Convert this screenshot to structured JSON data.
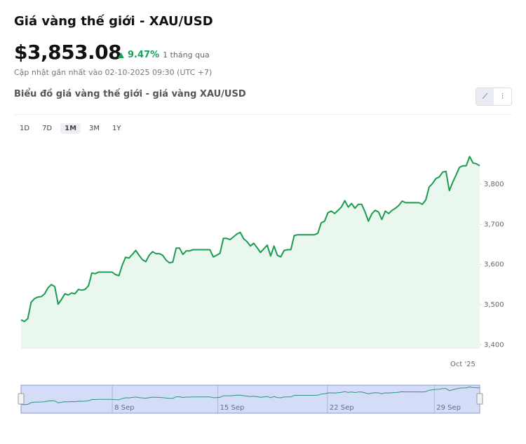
{
  "header": {
    "title": "Giá vàng thế giới - XAU/USD",
    "price": "$3,853.08",
    "change": "9.47%",
    "period": "1 tháng qua",
    "updated": "Cập nhật gần nhất vào 02-10-2025 09:30 (UTC +7)",
    "chart_heading": "Biểu đồ giá vàng thế giới - giá vàng XAU/USD",
    "ranges": [
      "1D",
      "7D",
      "1M",
      "3M",
      "1Y"
    ],
    "active_range": "1M"
  },
  "chart_data": {
    "type": "line",
    "color": "#1a9c50",
    "fill": "#eaf7ef",
    "categories": [
      null,
      null,
      null,
      null,
      null,
      null,
      null,
      null,
      null,
      null,
      null,
      null,
      null,
      null,
      null,
      null,
      null,
      null,
      null,
      null,
      null,
      null,
      null,
      null,
      null,
      null,
      null,
      null,
      null,
      null,
      null,
      null,
      null,
      null,
      null,
      null,
      null,
      null,
      null,
      null,
      null,
      null,
      null,
      null,
      null,
      null,
      null,
      null,
      null,
      null,
      null,
      null,
      null,
      null,
      null,
      null,
      null,
      null,
      null,
      null,
      null,
      null,
      null,
      null,
      null,
      null,
      null,
      null,
      null,
      null,
      null,
      null,
      null,
      null,
      null,
      null,
      null,
      null,
      null,
      null,
      null,
      null,
      null,
      null,
      null,
      null,
      null,
      null,
      null,
      null,
      null,
      null,
      null,
      null,
      null,
      null,
      null,
      null,
      null,
      null,
      null,
      null,
      null,
      null,
      null,
      null,
      null,
      null,
      null,
      null,
      null,
      null,
      null,
      null,
      null,
      null,
      null,
      null,
      null,
      null,
      null,
      null,
      null,
      null,
      null,
      null,
      null,
      null,
      null,
      null,
      null,
      "Oct '25",
      null,
      null,
      null,
      null,
      null
    ],
    "values": [
      3462,
      3458,
      3465,
      3506,
      3515,
      3519,
      3520,
      3527,
      3542,
      3550,
      3545,
      3501,
      3513,
      3527,
      3524,
      3529,
      3527,
      3538,
      3536,
      3538,
      3547,
      3579,
      3577,
      3581,
      3581,
      3581,
      3581,
      3581,
      3575,
      3572,
      3598,
      3618,
      3616,
      3625,
      3635,
      3623,
      3612,
      3607,
      3623,
      3632,
      3627,
      3627,
      3623,
      3611,
      3604,
      3606,
      3641,
      3641,
      3625,
      3634,
      3634,
      3637,
      3637,
      3637,
      3637,
      3637,
      3637,
      3619,
      3623,
      3628,
      3665,
      3665,
      3662,
      3669,
      3676,
      3680,
      3664,
      3657,
      3646,
      3653,
      3642,
      3630,
      3639,
      3648,
      3621,
      3646,
      3623,
      3619,
      3635,
      3637,
      3637,
      3672,
      3674,
      3674,
      3674,
      3674,
      3674,
      3674,
      3678,
      3704,
      3708,
      3729,
      3733,
      3727,
      3735,
      3743,
      3759,
      3743,
      3752,
      3740,
      3750,
      3750,
      3731,
      3708,
      3726,
      3735,
      3731,
      3712,
      3733,
      3727,
      3735,
      3740,
      3747,
      3758,
      3754,
      3754,
      3754,
      3754,
      3754,
      3750,
      3761,
      3793,
      3802,
      3814,
      3818,
      3830,
      3832,
      3784,
      3805,
      3823,
      3842,
      3846,
      3846,
      3869,
      3853,
      3851,
      3846
    ],
    "ylim": [
      3390,
      3910
    ],
    "yticks": [
      {
        "value": 3400,
        "label": "3,400"
      },
      {
        "value": 3500,
        "label": "3,500"
      },
      {
        "value": 3600,
        "label": "3,600"
      },
      {
        "value": 3700,
        "label": "3,700"
      },
      {
        "value": 3800,
        "label": "3,800"
      }
    ],
    "navigator_labels": [
      "8 Sep",
      "15 Sep",
      "22 Sep",
      "29 Sep"
    ]
  }
}
